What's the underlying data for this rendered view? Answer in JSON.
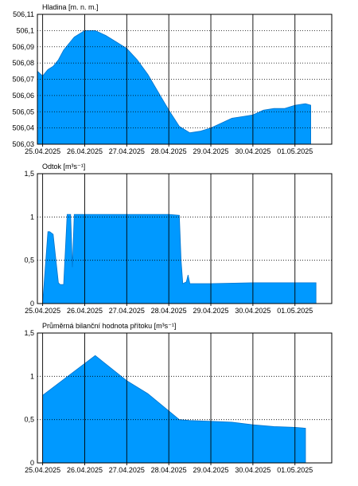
{
  "colors": {
    "fill": "#0099ff",
    "stroke": "#0073cc",
    "frame": "#000000",
    "grid": "#000000"
  },
  "chart_data": [
    {
      "type": "area",
      "title": "Hladina [m. n. m.]",
      "x_tick_labels": [
        "25.04.2025",
        "26.04.2025",
        "27.04.2025",
        "28.04.2025",
        "29.04.2025",
        "30.04.2025",
        "01.05.2025"
      ],
      "xlim": [
        "24.04.2025 21:00",
        "01.05.2025 21:00"
      ],
      "ylim": [
        506.03,
        506.11
      ],
      "y_ticks": [
        506.03,
        506.04,
        506.05,
        506.06,
        506.07,
        506.08,
        506.09,
        506.1,
        506.11
      ],
      "y_tick_labels": [
        "506,03",
        "506,04",
        "506,05",
        "506,06",
        "506,07",
        "506,08",
        "506,09",
        "506,1",
        "506,11"
      ],
      "grid": "dotted horizontal, solid vertical at midnights",
      "x": [
        "24.04.2025 21:00",
        "25.04.2025 00:00",
        "25.04.2025 03:00",
        "25.04.2025 06:00",
        "25.04.2025 09:00",
        "25.04.2025 12:00",
        "25.04.2025 18:00",
        "26.04.2025 00:00",
        "26.04.2025 06:00",
        "26.04.2025 12:00",
        "26.04.2025 18:00",
        "27.04.2025 00:00",
        "27.04.2025 06:00",
        "27.04.2025 12:00",
        "27.04.2025 18:00",
        "28.04.2025 00:00",
        "28.04.2025 06:00",
        "28.04.2025 12:00",
        "28.04.2025 18:00",
        "29.04.2025 00:00",
        "29.04.2025 06:00",
        "29.04.2025 12:00",
        "29.04.2025 18:00",
        "30.04.2025 00:00",
        "30.04.2025 06:00",
        "30.04.2025 12:00",
        "30.04.2025 18:00",
        "01.05.2025 00:00",
        "01.05.2025 06:00",
        "01.05.2025 09:00"
      ],
      "values": [
        506.075,
        506.072,
        506.076,
        506.078,
        506.082,
        506.088,
        506.096,
        506.1,
        506.1,
        506.097,
        506.093,
        506.089,
        506.082,
        506.073,
        506.062,
        506.051,
        506.041,
        506.037,
        506.038,
        506.04,
        506.043,
        506.046,
        506.047,
        506.048,
        506.051,
        506.052,
        506.052,
        506.054,
        506.055,
        506.054
      ]
    },
    {
      "type": "area",
      "title": "Odtok [m³s⁻¹]",
      "x_tick_labels": [
        "25.04.2025",
        "26.04.2025",
        "27.04.2025",
        "28.04.2025",
        "29.04.2025",
        "30.04.2025",
        "01.05.2025"
      ],
      "xlim": [
        "24.04.2025 21:00",
        "01.05.2025 21:00"
      ],
      "ylim": [
        0,
        1.5
      ],
      "y_ticks": [
        0,
        0.5,
        1,
        1.5
      ],
      "y_tick_labels": [
        "0",
        "0,5",
        "1",
        "1,5"
      ],
      "grid": "dotted horizontal, solid vertical at midnights",
      "x": [
        "25.04.2025 00:00",
        "25.04.2025 03:00",
        "25.04.2025 04:00",
        "25.04.2025 06:00",
        "25.04.2025 09:00",
        "25.04.2025 10:00",
        "25.04.2025 12:00",
        "25.04.2025 14:00",
        "25.04.2025 15:00",
        "25.04.2025 16:00",
        "25.04.2025 17:00",
        "25.04.2025 18:00",
        "26.04.2025 00:00",
        "26.04.2025 12:00",
        "27.04.2025 00:00",
        "27.04.2025 12:00",
        "28.04.2025 00:00",
        "28.04.2025 06:00",
        "28.04.2025 07:00",
        "28.04.2025 08:00",
        "28.04.2025 10:00",
        "28.04.2025 11:00",
        "28.04.2025 12:00",
        "28.04.2025 13:00",
        "28.04.2025 14:00",
        "29.04.2025 00:00",
        "30.04.2025 00:00",
        "01.05.2025 00:00",
        "01.05.2025 12:00"
      ],
      "values": [
        0,
        0.83,
        0.83,
        0.8,
        0.24,
        0.22,
        0.22,
        1.03,
        1.03,
        1.03,
        0.42,
        1.03,
        1.03,
        1.03,
        1.03,
        1.03,
        1.03,
        1.02,
        0.5,
        0.23,
        0.25,
        0.33,
        0.23,
        0.23,
        0.23,
        0.23,
        0.24,
        0.24,
        0.24
      ]
    },
    {
      "type": "area",
      "title": "Průměrná bilanční hodnota přítoku   [m³s⁻¹]",
      "x_tick_labels": [
        "25.04.2025",
        "26.04.2025",
        "27.04.2025",
        "28.04.2025",
        "29.04.2025",
        "30.04.2025",
        "01.05.2025"
      ],
      "xlim": [
        "24.04.2025 21:00",
        "01.05.2025 21:00"
      ],
      "ylim": [
        0,
        1.5
      ],
      "y_ticks": [
        0,
        0.5,
        1,
        1.5
      ],
      "y_tick_labels": [
        "0",
        "0,5",
        "1",
        "1,5"
      ],
      "grid": "dotted horizontal, solid vertical at midnights",
      "x": [
        "25.04.2025 00:00",
        "26.04.2025 06:00",
        "27.04.2025 00:00",
        "27.04.2025 12:00",
        "28.04.2025 00:00",
        "28.04.2025 06:00",
        "28.04.2025 12:00",
        "29.04.2025 00:00",
        "29.04.2025 12:00",
        "30.04.2025 00:00",
        "30.04.2025 12:00",
        "01.05.2025 00:00",
        "01.05.2025 06:00"
      ],
      "values": [
        0.78,
        1.24,
        0.95,
        0.8,
        0.6,
        0.5,
        0.49,
        0.48,
        0.47,
        0.44,
        0.42,
        0.41,
        0.4
      ]
    }
  ]
}
